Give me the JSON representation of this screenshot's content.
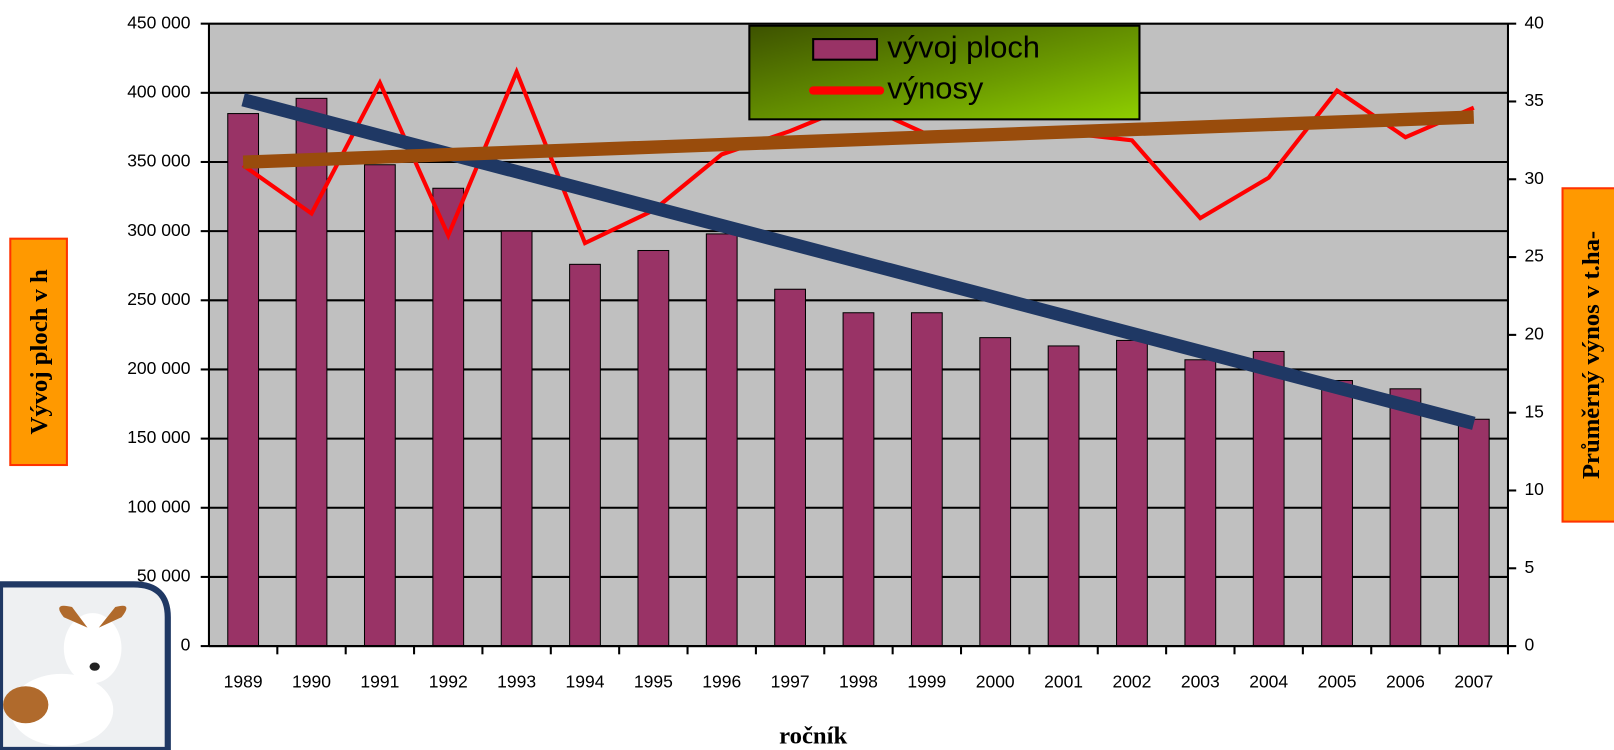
{
  "chart_data": {
    "type": "bar-line",
    "x_label": "ročník",
    "y_label": "Vývoj ploch v h",
    "y2_label": "Průměrný výnos v t.ha-",
    "categories": [
      "1989",
      "1990",
      "1991",
      "1992",
      "1993",
      "1994",
      "1995",
      "1996",
      "1997",
      "1998",
      "1999",
      "2000",
      "2001",
      "2002",
      "2003",
      "2004",
      "2005",
      "2006",
      "2007"
    ],
    "series": [
      {
        "name": "vývoj ploch",
        "type": "bar",
        "color": "#993366",
        "values": [
          385000,
          396000,
          348000,
          331000,
          300000,
          276000,
          286000,
          298000,
          258000,
          241000,
          241000,
          223000,
          217000,
          221000,
          207000,
          213000,
          192000,
          186000,
          164000
        ]
      },
      {
        "name": "výnosy",
        "type": "line",
        "axis": "y2",
        "color": "#ff0000",
        "values": [
          30.9,
          27.8,
          36.2,
          26.4,
          36.9,
          25.9,
          28.0,
          31.6,
          33.1,
          34.9,
          32.9,
          33.0,
          33.0,
          32.5,
          27.5,
          30.1,
          35.7,
          32.7,
          34.6
        ]
      }
    ],
    "trendlines": [
      {
        "color": "#1f3864",
        "values": [
          395000,
          161000
        ]
      },
      {
        "axis": "y2",
        "color": "#994c0c",
        "values": [
          31.1,
          34.0
        ]
      }
    ],
    "ylim": [
      0,
      450000
    ],
    "yticks": [
      0,
      {
        "value": 50000,
        "label": "50 000"
      },
      {
        "value": 100000,
        "label": "100 000"
      },
      {
        "value": 150000,
        "label": "150 000"
      },
      {
        "value": 200000,
        "label": "200 000"
      },
      {
        "value": 250000,
        "label": "250 000"
      },
      {
        "value": 300000,
        "label": "300 000"
      },
      {
        "value": 350000,
        "label": "350 000"
      },
      {
        "value": 400000,
        "label": "400 000"
      },
      {
        "value": 450000,
        "label": "450 000"
      }
    ],
    "y2lim": [
      0,
      40
    ],
    "y2ticks": [
      0,
      5,
      10,
      15,
      20,
      25,
      30,
      35,
      40
    ],
    "grid": true,
    "plot_background": "#c0c0c0"
  }
}
